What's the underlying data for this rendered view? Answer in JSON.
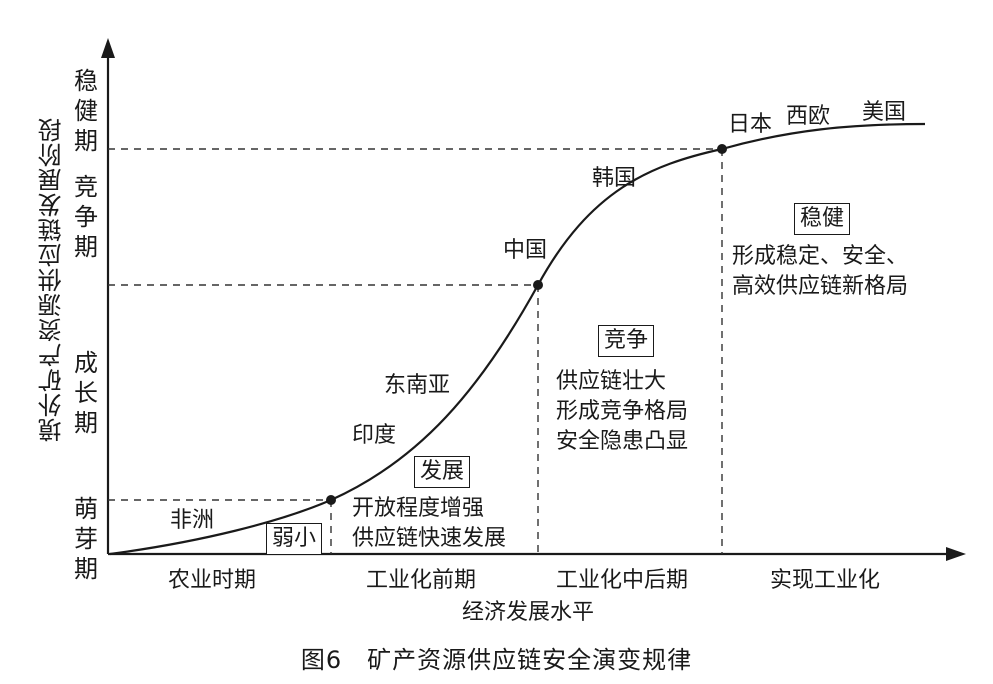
{
  "y_axis": {
    "title": "境外矿产资源供应链发展阶段",
    "stages": [
      "稳健期",
      "竞争期",
      "成长期",
      "萌芽期"
    ]
  },
  "x_axis": {
    "title": "经济发展水平",
    "periods": [
      "农业时期",
      "工业化前期",
      "工业化中后期",
      "实现工业化"
    ]
  },
  "curve_labels": [
    "非洲",
    "印度",
    "东南亚",
    "中国",
    "韩国",
    "日本",
    "西欧",
    "美国"
  ],
  "phases": [
    {
      "tag": "弱小",
      "desc": ""
    },
    {
      "tag": "发展",
      "desc": "开放程度增强\n供应链快速发展"
    },
    {
      "tag": "竞争",
      "desc": "供应链壮大\n形成竞争格局\n安全隐患凸显"
    },
    {
      "tag": "稳健",
      "desc": "形成稳定、安全、\n高效供应链新格局"
    }
  ],
  "caption": "图6　矿产资源供应链安全演变规律"
}
